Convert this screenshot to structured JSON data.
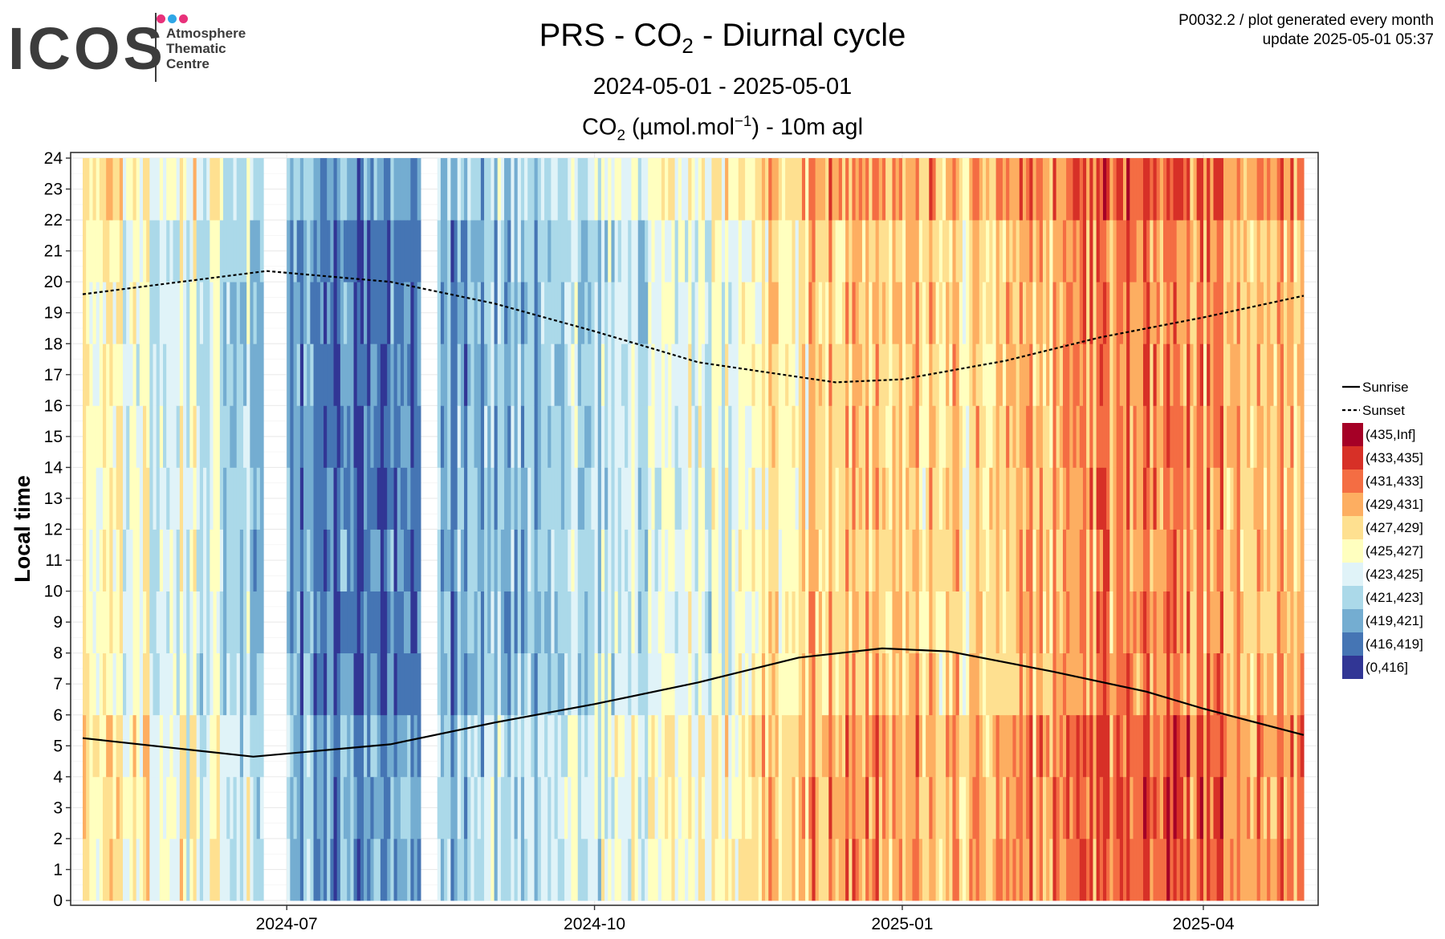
{
  "header": {
    "logo_word": "ICOS",
    "logo_line1": "Atmosphere",
    "logo_line2": "Thematic",
    "logo_line3": "Centre",
    "logo_dot_colors": [
      "#e8317a",
      "#2ea6e6",
      "#e8317a"
    ],
    "meta_line1": "P0032.2 / plot generated every month",
    "meta_line2": "update  2025-05-01 05:37"
  },
  "chart_data": {
    "type": "heatmap",
    "title_pre": "PRS - CO",
    "title_sub": "2",
    "title_post": " - Diurnal cycle",
    "subtitle": "2024-05-01 - 2025-05-01",
    "unit_pre": "CO",
    "unit_sub": "2",
    "unit_mid": " (µmol.mol",
    "unit_sup": "−1",
    "unit_post": ") - 10m agl",
    "xlabel": "",
    "ylabel": "Local time",
    "x_range": [
      "2024-05-01",
      "2025-05-01"
    ],
    "x_ticks": [
      "2024-07",
      "2024-10",
      "2025-01",
      "2025-04"
    ],
    "y_range": [
      0,
      24
    ],
    "y_ticks": [
      0,
      1,
      2,
      3,
      4,
      5,
      6,
      7,
      8,
      9,
      10,
      11,
      12,
      13,
      14,
      15,
      16,
      17,
      18,
      19,
      20,
      21,
      22,
      23,
      24
    ],
    "grid": true,
    "legend_position": "right",
    "lines": [
      {
        "name": "Sunrise",
        "style": "solid",
        "points": [
          [
            "2024-05-01",
            5.25
          ],
          [
            "2024-06-21",
            4.65
          ],
          [
            "2024-08-01",
            5.05
          ],
          [
            "2024-09-01",
            5.75
          ],
          [
            "2024-10-01",
            6.35
          ],
          [
            "2024-11-01",
            7.05
          ],
          [
            "2024-12-01",
            7.85
          ],
          [
            "2024-12-26",
            8.15
          ],
          [
            "2025-01-15",
            8.05
          ],
          [
            "2025-02-15",
            7.4
          ],
          [
            "2025-03-15",
            6.75
          ],
          [
            "2025-04-01",
            6.2
          ],
          [
            "2025-05-01",
            5.35
          ]
        ]
      },
      {
        "name": "Sunset",
        "style": "dashed",
        "points": [
          [
            "2024-05-01",
            19.6
          ],
          [
            "2024-06-25",
            20.35
          ],
          [
            "2024-08-01",
            20.0
          ],
          [
            "2024-09-01",
            19.3
          ],
          [
            "2024-10-01",
            18.4
          ],
          [
            "2024-11-01",
            17.4
          ],
          [
            "2024-12-12",
            16.75
          ],
          [
            "2025-01-01",
            16.85
          ],
          [
            "2025-02-01",
            17.45
          ],
          [
            "2025-03-01",
            18.2
          ],
          [
            "2025-04-01",
            18.85
          ],
          [
            "2025-05-01",
            19.55
          ]
        ]
      }
    ],
    "legend_bins": [
      {
        "label": "(435,Inf]",
        "color": "#a50026"
      },
      {
        "label": "(433,435]",
        "color": "#d73027"
      },
      {
        "label": "(431,433]",
        "color": "#f46d43"
      },
      {
        "label": "(429,431]",
        "color": "#fdae61"
      },
      {
        "label": "(427,429]",
        "color": "#fee090"
      },
      {
        "label": "(425,427]",
        "color": "#ffffbf"
      },
      {
        "label": "(423,425]",
        "color": "#e0f3f8"
      },
      {
        "label": "(421,423]",
        "color": "#abd9e9"
      },
      {
        "label": "(419,421]",
        "color": "#74add1"
      },
      {
        "label": "(416,419]",
        "color": "#4575b4"
      },
      {
        "label": "(0,416]",
        "color": "#313695"
      }
    ],
    "monthly_dominant_bin": [
      {
        "month": "2024-05",
        "bin": "(425,427]"
      },
      {
        "month": "2024-06",
        "bin": "(423,425]"
      },
      {
        "month": "2024-07",
        "bin": "(416,419]"
      },
      {
        "month": "2024-08",
        "bin": "(419,421]"
      },
      {
        "month": "2024-09",
        "bin": "(421,423]"
      },
      {
        "month": "2024-10",
        "bin": "(423,425]"
      },
      {
        "month": "2024-11",
        "bin": "(425,427]"
      },
      {
        "month": "2024-12",
        "bin": "(429,431]"
      },
      {
        "month": "2025-01",
        "bin": "(427,429]"
      },
      {
        "month": "2025-02",
        "bin": "(429,431]"
      },
      {
        "month": "2025-03",
        "bin": "(431,433]"
      },
      {
        "month": "2025-04",
        "bin": "(429,431]"
      }
    ],
    "gap_periods": [
      [
        "2024-06-24",
        "2024-07-01"
      ],
      [
        "2024-08-10",
        "2024-08-15"
      ]
    ]
  }
}
